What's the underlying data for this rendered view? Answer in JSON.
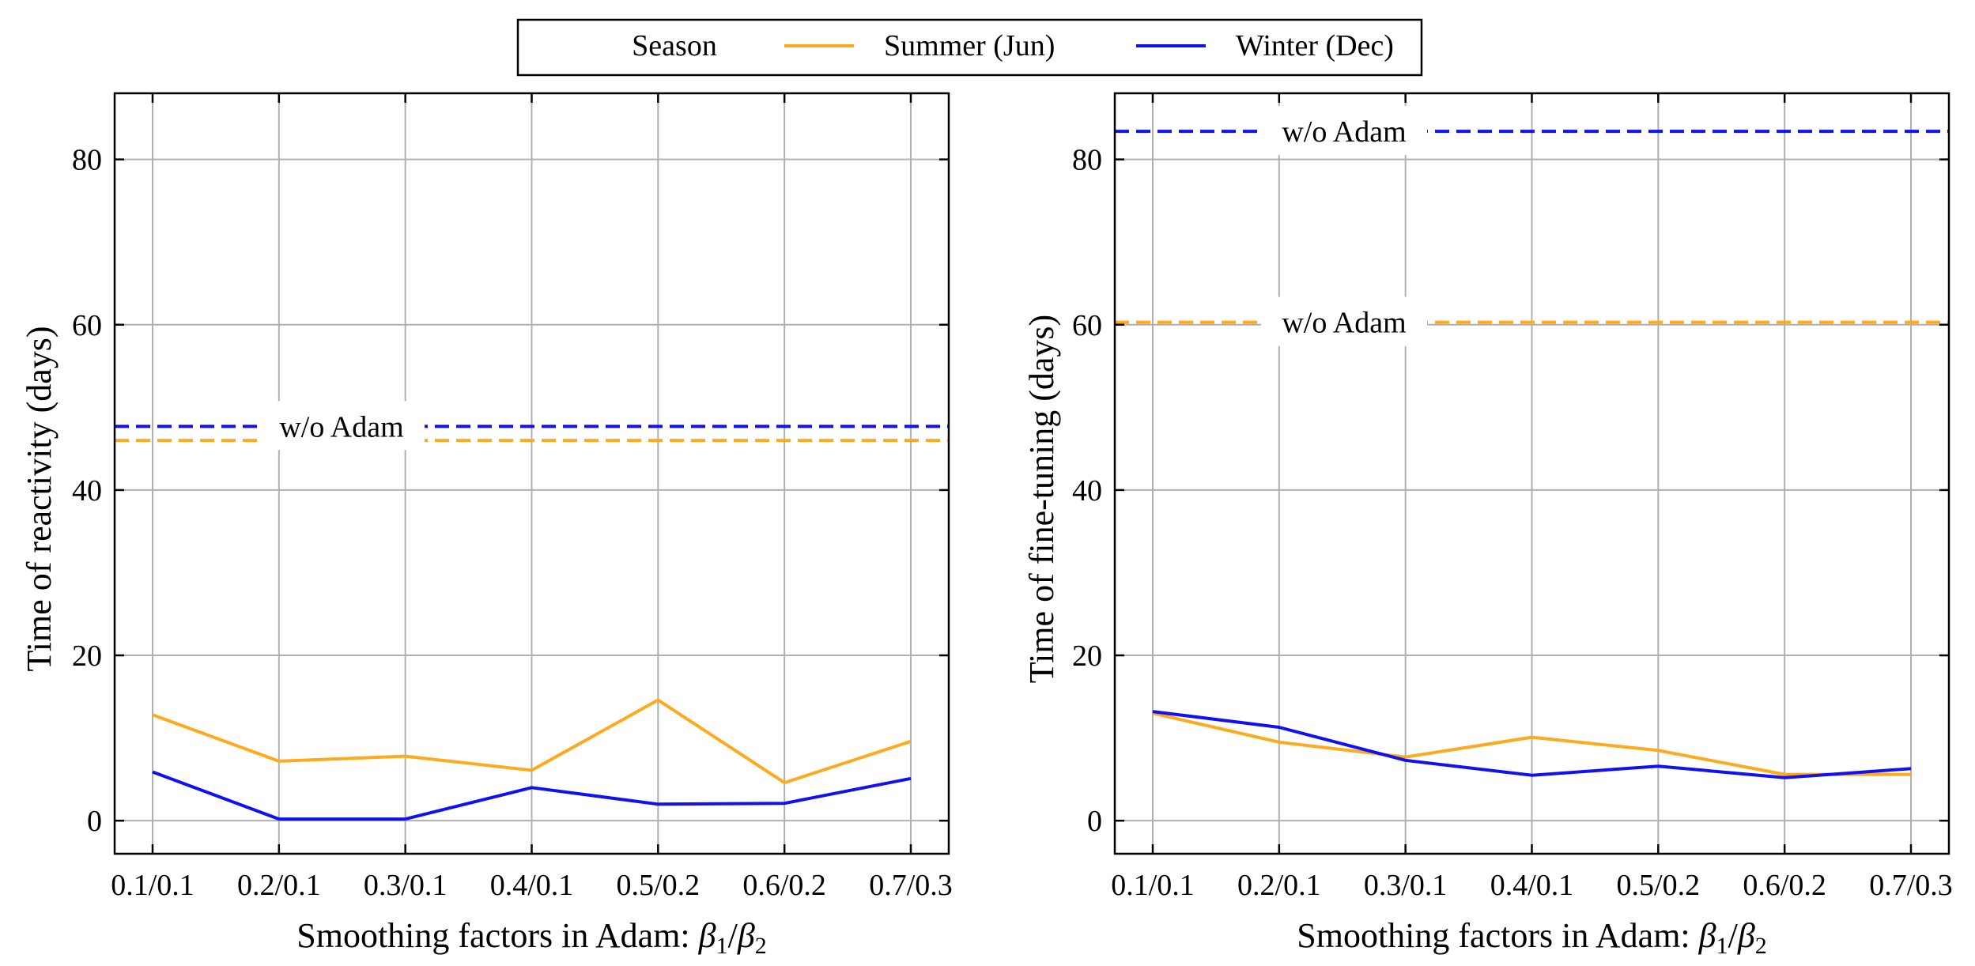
{
  "legend": {
    "title": "Season",
    "entries": [
      {
        "label": "Summer (Jun)",
        "color": "#FFA91F"
      },
      {
        "label": "Winter (Dec)",
        "color": "#1010F0"
      }
    ]
  },
  "chart_data": [
    {
      "type": "line",
      "title": "",
      "xlabel": "Smoothing factors in Adam: ",
      "xlabel_math": {
        "b1": "β",
        "s1": "1",
        "slash": "/",
        "b2": "β",
        "s2": "2"
      },
      "ylabel": "Time of reactivity (days)",
      "categories": [
        "0.1/0.1",
        "0.2/0.1",
        "0.3/0.1",
        "0.4/0.1",
        "0.5/0.2",
        "0.6/0.2",
        "0.7/0.3"
      ],
      "ylim": [
        -4,
        88
      ],
      "yticks": [
        0,
        20,
        40,
        60,
        80
      ],
      "grid": true,
      "series": [
        {
          "name": "Summer (Jun)",
          "color": "#FFA91F",
          "values": [
            12.8,
            7.2,
            7.8,
            6.1,
            14.6,
            4.6,
            9.6
          ]
        },
        {
          "name": "Winter (Dec)",
          "color": "#1010F0",
          "values": [
            5.9,
            0.2,
            0.2,
            4.0,
            2.0,
            2.1,
            5.1
          ]
        }
      ],
      "reference_lines": [
        {
          "name": "Winter (Dec)",
          "color": "#1010F0",
          "value": 47.7
        },
        {
          "name": "Summer (Jun)",
          "color": "#FFA91F",
          "value": 46.0
        }
      ],
      "annotations": [
        {
          "text": "w/o Adam",
          "near_value": 47.7
        }
      ]
    },
    {
      "type": "line",
      "title": "",
      "xlabel": "Smoothing factors in Adam: ",
      "xlabel_math": {
        "b1": "β",
        "s1": "1",
        "slash": "/",
        "b2": "β",
        "s2": "2"
      },
      "ylabel": "Time of fine-tuning (days)",
      "categories": [
        "0.1/0.1",
        "0.2/0.1",
        "0.3/0.1",
        "0.4/0.1",
        "0.5/0.2",
        "0.6/0.2",
        "0.7/0.3"
      ],
      "ylim": [
        -4,
        88
      ],
      "yticks": [
        0,
        20,
        40,
        60,
        80
      ],
      "grid": true,
      "series": [
        {
          "name": "Summer (Jun)",
          "color": "#FFA91F",
          "values": [
            13.0,
            9.5,
            7.7,
            10.1,
            8.5,
            5.6,
            5.6
          ]
        },
        {
          "name": "Winter (Dec)",
          "color": "#1010F0",
          "values": [
            13.2,
            11.3,
            7.3,
            5.5,
            6.6,
            5.2,
            6.3
          ]
        }
      ],
      "reference_lines": [
        {
          "name": "Winter (Dec)",
          "color": "#1010F0",
          "value": 83.4
        },
        {
          "name": "Summer (Jun)",
          "color": "#FFA91F",
          "value": 60.3
        }
      ],
      "annotations": [
        {
          "text": "w/o Adam",
          "near_value": 83.4
        },
        {
          "text": "w/o Adam",
          "near_value": 60.3
        }
      ]
    }
  ]
}
